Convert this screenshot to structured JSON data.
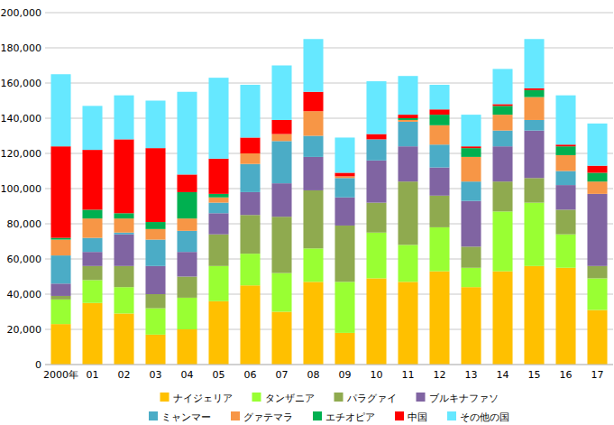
{
  "chart_data": {
    "type": "bar",
    "stacked": true,
    "grid": true,
    "legend": "bottom",
    "categories": [
      "2000年",
      "01",
      "02",
      "03",
      "04",
      "05",
      "06",
      "07",
      "08",
      "09",
      "10",
      "11",
      "12",
      "13",
      "14",
      "15",
      "16",
      "17"
    ],
    "ylim": [
      0,
      200000
    ],
    "yticks": [
      0,
      {
        "value": 20000,
        "label": "20,000"
      },
      {
        "value": 40000,
        "label": "40,000"
      },
      {
        "value": 60000,
        "label": "60,000"
      },
      {
        "value": 80000,
        "label": "80,000"
      },
      {
        "value": 100000,
        "label": "100,000"
      },
      {
        "value": 120000,
        "label": "120,000"
      },
      {
        "value": 140000,
        "label": "140,000"
      },
      {
        "value": 160000,
        "label": "160,000"
      },
      {
        "value": 180000,
        "label": "180,000"
      },
      {
        "value": 200000,
        "label": "200,000"
      }
    ],
    "series": [
      {
        "name": "ナイジェリア",
        "color": "#ffc000",
        "values": [
          23000,
          35000,
          29000,
          17000,
          20000,
          36000,
          45000,
          30000,
          47000,
          18000,
          49000,
          47000,
          53000,
          44000,
          53000,
          56000,
          55000,
          31000
        ]
      },
      {
        "name": "タンザニア",
        "color": "#99ff33",
        "values": [
          14000,
          13000,
          15000,
          15000,
          18000,
          20000,
          18000,
          22000,
          19000,
          29000,
          26000,
          21000,
          25000,
          11000,
          34000,
          36000,
          19000,
          18000
        ]
      },
      {
        "name": "パラグァイ",
        "color": "#8faa4f",
        "values": [
          2000,
          8000,
          12000,
          8000,
          12000,
          18000,
          22000,
          32000,
          33000,
          32000,
          17000,
          36000,
          18000,
          12000,
          17000,
          14000,
          14000,
          7000
        ]
      },
      {
        "name": "ブルキナファソ",
        "color": "#8064a2",
        "values": [
          7000,
          8000,
          18000,
          16000,
          14000,
          12000,
          13000,
          19000,
          19000,
          16000,
          24000,
          20000,
          16000,
          26000,
          20000,
          27000,
          14000,
          41000
        ]
      },
      {
        "name": "ミャンマー",
        "color": "#4bacc6",
        "values": [
          16000,
          8000,
          1000,
          15000,
          12000,
          6000,
          16000,
          24000,
          12000,
          11000,
          12000,
          14000,
          13000,
          11000,
          9000,
          6000,
          8000,
          0
        ]
      },
      {
        "name": "グァテマラ",
        "color": "#f79646",
        "values": [
          9000,
          11000,
          8000,
          6000,
          7000,
          3000,
          6000,
          4000,
          14000,
          1000,
          0,
          1000,
          11000,
          14000,
          9000,
          13000,
          9000,
          7000
        ]
      },
      {
        "name": "エチオピア",
        "color": "#00b050",
        "values": [
          1000,
          5000,
          3000,
          4000,
          15000,
          2000,
          0,
          0,
          0,
          0,
          0,
          1000,
          6000,
          5000,
          5000,
          4000,
          5000,
          5000
        ]
      },
      {
        "name": "中国",
        "color": "#ff0000",
        "values": [
          52000,
          34000,
          42000,
          42000,
          10000,
          20000,
          9000,
          8000,
          11000,
          2000,
          3000,
          2000,
          3000,
          1000,
          1000,
          1000,
          1000,
          4000
        ]
      },
      {
        "name": "その他の国",
        "color": "#66e8ff",
        "values": [
          41000,
          25000,
          25000,
          27000,
          47000,
          46000,
          30000,
          31000,
          30000,
          20000,
          30000,
          22000,
          14000,
          18000,
          20000,
          28000,
          28000,
          24000
        ]
      }
    ]
  }
}
